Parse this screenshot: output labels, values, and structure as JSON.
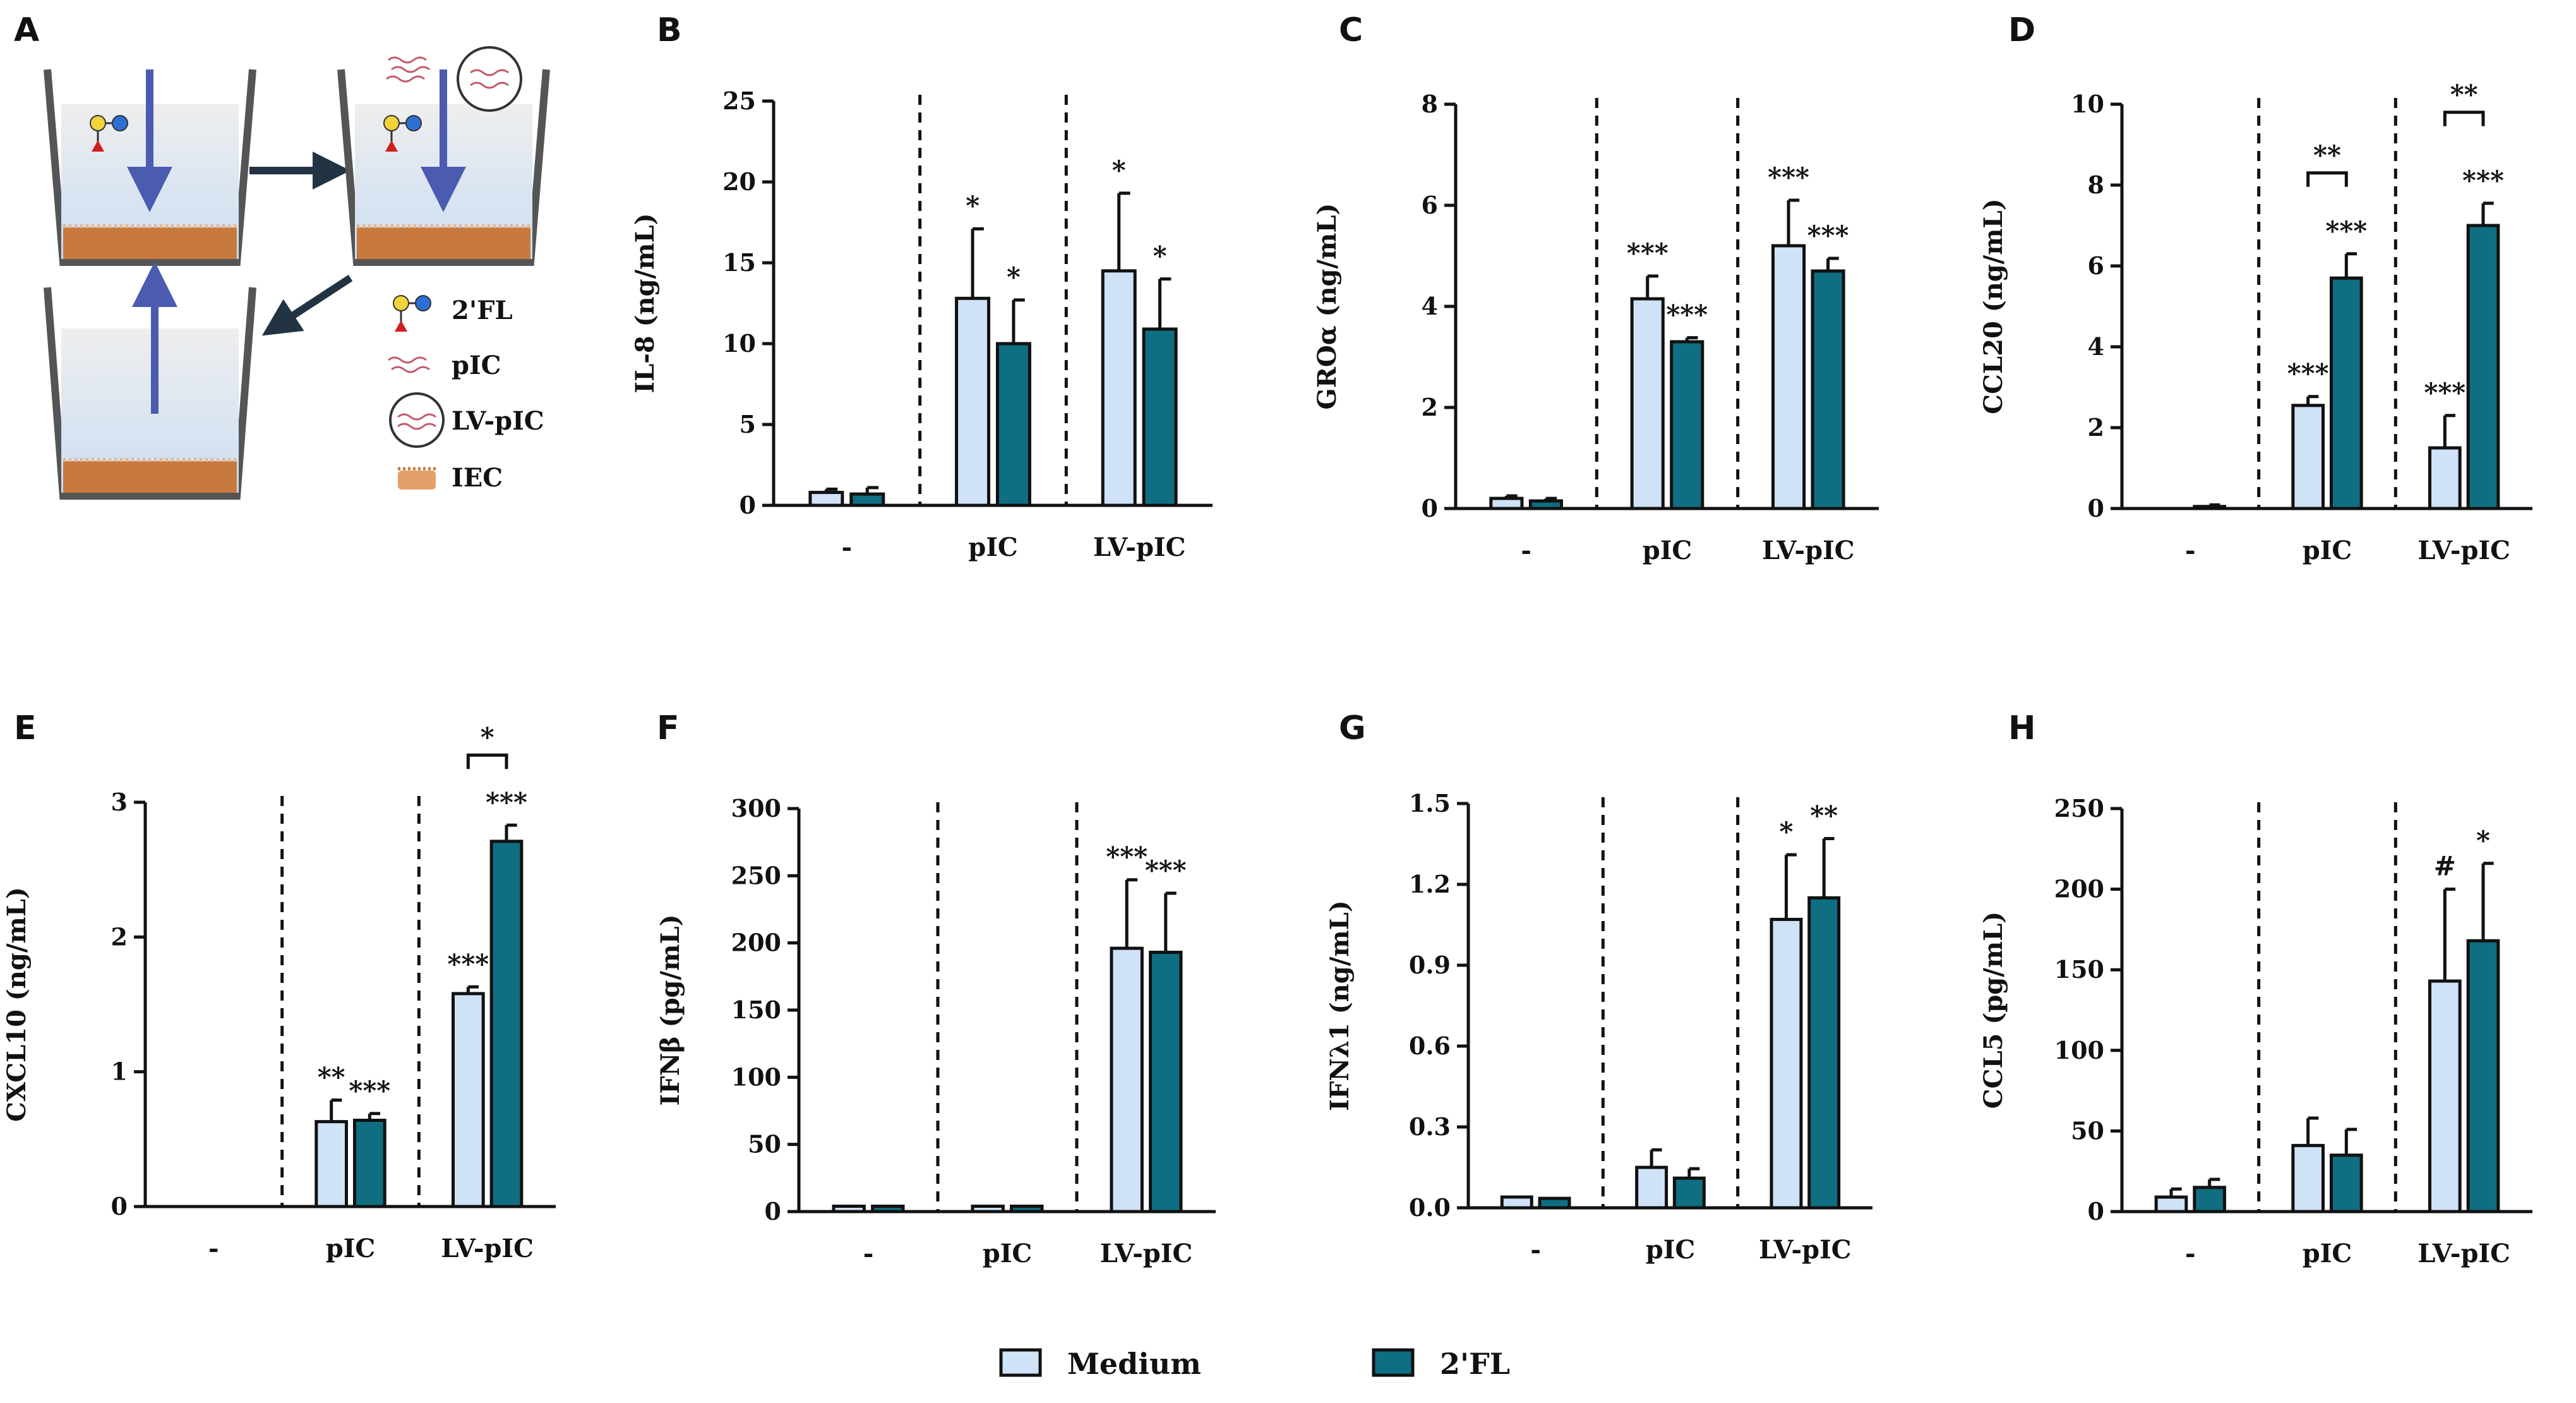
{
  "figure": {
    "panel_letters": [
      "A",
      "B",
      "C",
      "D",
      "E",
      "F",
      "G",
      "H"
    ]
  },
  "schematic": {
    "legend": [
      "2'FL",
      "pIC",
      "LV-pIC",
      "IEC"
    ],
    "colors": {
      "arrow": "#4a5bb0",
      "dark_arrow": "#223344",
      "tissue": "#c87a3e",
      "well": "#555555"
    }
  },
  "legend": {
    "items": [
      {
        "label": "Medium",
        "color": "#cfe2f8"
      },
      {
        "label": "2'FL",
        "color": "#0f6e81"
      }
    ]
  },
  "colors": {
    "medium": "#cfe2f8",
    "twofl": "#0f6e81",
    "outline": "#111111"
  },
  "chart_data": [
    {
      "panel": "B",
      "type": "bar",
      "ylabel": "IL-8 (ng/mL)",
      "categories": [
        "-",
        "pIC",
        "LV-pIC"
      ],
      "ylim": [
        0,
        25
      ],
      "yticks": [
        "0",
        "5",
        "10",
        "15",
        "20",
        "25"
      ],
      "ytick_values": [
        0,
        5,
        10,
        15,
        20,
        25
      ],
      "series": [
        {
          "name": "Medium",
          "values": [
            0.8,
            12.8,
            14.5
          ],
          "errors": [
            0.2,
            4.3,
            4.8
          ]
        },
        {
          "name": "2'FL",
          "values": [
            0.7,
            10.0,
            10.9
          ],
          "errors": [
            0.4,
            2.7,
            3.1
          ]
        }
      ],
      "significance": [
        [
          "",
          "*",
          "*"
        ],
        [
          "",
          "*",
          "*"
        ]
      ],
      "brackets": []
    },
    {
      "panel": "C",
      "type": "bar",
      "ylabel": "GROα (ng/mL)",
      "categories": [
        "-",
        "pIC",
        "LV-pIC"
      ],
      "ylim": [
        0,
        8
      ],
      "yticks": [
        "0",
        "2",
        "4",
        "6",
        "8"
      ],
      "ytick_values": [
        0,
        2,
        4,
        6,
        8
      ],
      "series": [
        {
          "name": "Medium",
          "values": [
            0.2,
            4.15,
            5.2
          ],
          "errors": [
            0.05,
            0.45,
            0.9
          ]
        },
        {
          "name": "2'FL",
          "values": [
            0.15,
            3.3,
            4.7
          ],
          "errors": [
            0.05,
            0.08,
            0.25
          ]
        }
      ],
      "significance": [
        [
          "",
          "***",
          "***"
        ],
        [
          "",
          "***",
          "***"
        ]
      ],
      "brackets": []
    },
    {
      "panel": "D",
      "type": "bar",
      "ylabel": "CCL20 (ng/mL)",
      "categories": [
        "-",
        "pIC",
        "LV-pIC"
      ],
      "ylim": [
        0,
        10
      ],
      "yticks": [
        "0",
        "2",
        "4",
        "6",
        "8",
        "10"
      ],
      "ytick_values": [
        0,
        2,
        4,
        6,
        8,
        10
      ],
      "series": [
        {
          "name": "Medium",
          "values": [
            0.0,
            2.55,
            1.5
          ],
          "errors": [
            0.0,
            0.22,
            0.8
          ]
        },
        {
          "name": "2'FL",
          "values": [
            0.05,
            5.7,
            7.0
          ],
          "errors": [
            0.04,
            0.6,
            0.55
          ]
        }
      ],
      "significance": [
        [
          "",
          "***",
          "***"
        ],
        [
          "",
          "***",
          "***"
        ]
      ],
      "brackets": [
        {
          "category": 1,
          "label": "**",
          "y": 8.3
        },
        {
          "category": 2,
          "label": "**",
          "y": 9.8
        }
      ]
    },
    {
      "panel": "E",
      "type": "bar",
      "ylabel": "CXCL10 (ng/mL)",
      "categories": [
        "-",
        "pIC",
        "LV-pIC"
      ],
      "ylim": [
        0,
        3
      ],
      "yticks": [
        "0",
        "1",
        "2",
        "3"
      ],
      "ytick_values": [
        0,
        1,
        2,
        3
      ],
      "series": [
        {
          "name": "Medium",
          "values": [
            0.0,
            0.63,
            1.58
          ],
          "errors": [
            0.0,
            0.16,
            0.05
          ]
        },
        {
          "name": "2'FL",
          "values": [
            0.0,
            0.64,
            2.71
          ],
          "errors": [
            0.0,
            0.05,
            0.12
          ]
        }
      ],
      "significance": [
        [
          "",
          "**",
          "***"
        ],
        [
          "",
          "***",
          "***"
        ]
      ],
      "brackets": [
        {
          "category": 2,
          "label": "*",
          "y": 3.35
        }
      ]
    },
    {
      "panel": "F",
      "type": "bar",
      "ylabel": "IFNβ (pg/mL)",
      "categories": [
        "-",
        "pIC",
        "LV-pIC"
      ],
      "ylim": [
        0,
        300
      ],
      "yticks": [
        "0",
        "50",
        "100",
        "150",
        "200",
        "250",
        "300"
      ],
      "ytick_values": [
        0,
        50,
        100,
        150,
        200,
        250,
        300
      ],
      "series": [
        {
          "name": "Medium",
          "values": [
            4,
            4,
            196
          ],
          "errors": [
            0,
            0,
            51
          ]
        },
        {
          "name": "2'FL",
          "values": [
            4,
            4,
            193
          ],
          "errors": [
            0,
            0,
            44
          ]
        }
      ],
      "significance": [
        [
          "",
          "",
          "***"
        ],
        [
          "",
          "",
          "***"
        ]
      ],
      "brackets": []
    },
    {
      "panel": "G",
      "type": "bar",
      "ylabel": "IFNλ1 (ng/mL)",
      "categories": [
        "-",
        "pIC",
        "LV-pIC"
      ],
      "ylim": [
        0,
        1.5
      ],
      "yticks": [
        "0.0",
        "0.3",
        "0.6",
        "0.9",
        "1.2",
        "1.5"
      ],
      "ytick_values": [
        0,
        0.3,
        0.6,
        0.9,
        1.2,
        1.5
      ],
      "series": [
        {
          "name": "Medium",
          "values": [
            0.04,
            0.15,
            1.07
          ],
          "errors": [
            0.0,
            0.065,
            0.24
          ]
        },
        {
          "name": "2'FL",
          "values": [
            0.035,
            0.11,
            1.15
          ],
          "errors": [
            0.0,
            0.035,
            0.22
          ]
        }
      ],
      "significance": [
        [
          "",
          "",
          "*"
        ],
        [
          "",
          "",
          "**"
        ]
      ],
      "brackets": []
    },
    {
      "panel": "H",
      "type": "bar",
      "ylabel": "CCL5 (pg/mL)",
      "categories": [
        "-",
        "pIC",
        "LV-pIC"
      ],
      "ylim": [
        0,
        250
      ],
      "yticks": [
        "0",
        "50",
        "100",
        "150",
        "200",
        "250"
      ],
      "ytick_values": [
        0,
        50,
        100,
        150,
        200,
        250
      ],
      "series": [
        {
          "name": "Medium",
          "values": [
            9,
            41,
            143
          ],
          "errors": [
            5,
            17,
            57
          ]
        },
        {
          "name": "2'FL",
          "values": [
            15,
            35,
            168
          ],
          "errors": [
            5,
            16,
            48
          ]
        }
      ],
      "significance": [
        [
          "",
          "",
          "#"
        ],
        [
          "",
          "",
          "*"
        ]
      ],
      "brackets": []
    }
  ]
}
